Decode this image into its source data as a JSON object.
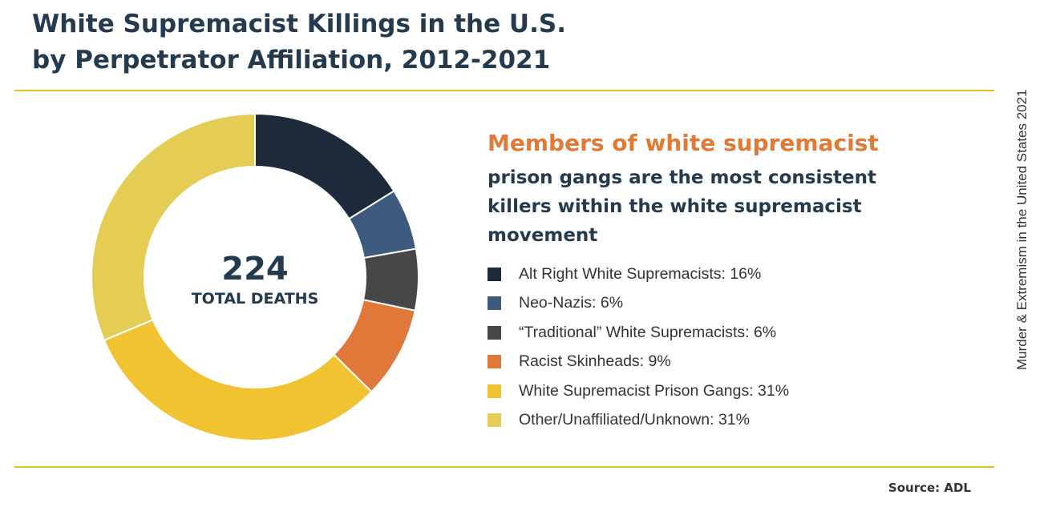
{
  "title": {
    "line1": "White Supremacist Killings in the U.S.",
    "line2": "by Perpetrator Affiliation, 2012-2021"
  },
  "side_text": "Murder & Extremism in the United States 2021",
  "center": {
    "value": "224",
    "label": "TOTAL DEATHS"
  },
  "headline": "Members of white supremacist",
  "subheadline": {
    "line1": "prison gangs are the most consistent",
    "line2": "killers within the white supremacist",
    "line3": "movement"
  },
  "source": "Source: ADL",
  "chart_data": {
    "type": "pie",
    "title": "White Supremacist Killings in the U.S. by Perpetrator Affiliation, 2012-2021",
    "total": 224,
    "labels": [
      "Alt Right White Supremacists: 16%",
      "Neo-Nazis: 6%",
      "“Traditional” White Supremacists: 6%",
      "Racist Skinheads: 9%",
      "White Supremacist Prison Gangs: 31%",
      "Other/Unaffiliated/Unknown: 31%"
    ],
    "values": [
      16,
      6,
      6,
      9,
      31,
      31
    ],
    "colors": [
      "#1c2a3c",
      "#3e5a7e",
      "#47474a",
      "#e0783a",
      "#f1c331",
      "#e5cd55"
    ],
    "legend_position": "right"
  }
}
